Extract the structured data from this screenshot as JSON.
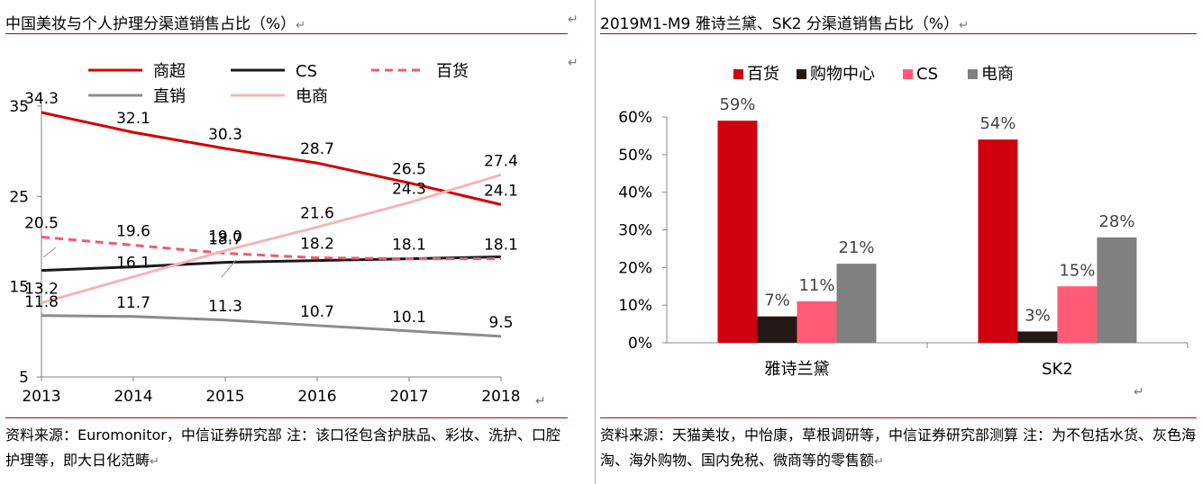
{
  "left": {
    "title": "中国美妆与个人护理分渠道销售占比（%）",
    "source": "资料来源：Euromonitor，中信证券研究部  注：该口径包含护肤品、彩妆、洗护、口腔护理等，即大日化范畴"
  },
  "right": {
    "title": "2019M1-M9 雅诗兰黛、SK2 分渠道销售占比（%）",
    "source": "资料来源：天猫美妆，中怡康，草根调研等，中信证券研究部测算  注：为不包括水货、灰色海淘、海外购物、国内免税、微商等的零售额"
  },
  "return_mark": "↵",
  "chart_data": [
    {
      "type": "line",
      "x": [
        "2013",
        "2014",
        "2015",
        "2016",
        "2017",
        "2018"
      ],
      "ylim": [
        5,
        35
      ],
      "yticks": [
        "5",
        "15",
        "25",
        "35"
      ],
      "series": [
        {
          "name": "商超",
          "values": [
            34.3,
            32.1,
            30.3,
            28.7,
            26.5,
            24.1
          ],
          "color": "#d40000",
          "dash": false
        },
        {
          "name": "CS",
          "values": [
            16.8,
            17.2,
            17.7,
            17.9,
            18.1,
            18.3
          ],
          "color": "#1a1a1a",
          "dash": false
        },
        {
          "name": "百货",
          "values": [
            20.5,
            19.6,
            18.7,
            18.2,
            18.1,
            18.1
          ],
          "color": "#f15a6a",
          "dash": true
        },
        {
          "name": "直销",
          "values": [
            11.8,
            11.7,
            11.3,
            10.7,
            10.1,
            9.5
          ],
          "color": "#8c8c8c",
          "dash": false
        },
        {
          "name": "电商",
          "values": [
            13.2,
            16.1,
            19.0,
            21.6,
            24.3,
            27.4
          ],
          "color": "#f5b5b5",
          "dash": false
        }
      ],
      "data_labels": [
        {
          "text": "34.3",
          "x": "2013",
          "y": 34.3,
          "pos": "above"
        },
        {
          "text": "32.1",
          "x": "2014",
          "y": 32.1,
          "pos": "above"
        },
        {
          "text": "30.3",
          "x": "2015",
          "y": 30.3,
          "pos": "above"
        },
        {
          "text": "28.7",
          "x": "2016",
          "y": 28.7,
          "pos": "above"
        },
        {
          "text": "26.5",
          "x": "2017",
          "y": 26.5,
          "pos": "above"
        },
        {
          "text": "27.4",
          "x": "2018",
          "y": 27.4,
          "pos": "above"
        },
        {
          "text": "24.3",
          "x": "2017",
          "y": 24.3,
          "pos": "above"
        },
        {
          "text": "24.1",
          "x": "2018",
          "y": 24.1,
          "pos": "above"
        },
        {
          "text": "20.5",
          "x": "2013",
          "y": 20.5,
          "pos": "above"
        },
        {
          "text": "19.6",
          "x": "2014",
          "y": 19.6,
          "pos": "above"
        },
        {
          "text": "19.0",
          "x": "2015",
          "y": 19.0,
          "pos": "above"
        },
        {
          "text": "21.6",
          "x": "2016",
          "y": 21.6,
          "pos": "above"
        },
        {
          "text": "18.7",
          "x": "2015",
          "y": 18.7,
          "pos": "above"
        },
        {
          "text": "18.2",
          "x": "2016",
          "y": 18.2,
          "pos": "above"
        },
        {
          "text": "18.1",
          "x": "2017",
          "y": 18.1,
          "pos": "above"
        },
        {
          "text": "18.1",
          "x": "2018",
          "y": 18.1,
          "pos": "above"
        },
        {
          "text": "16.1",
          "x": "2014",
          "y": 16.1,
          "pos": "above"
        },
        {
          "text": "13.2",
          "x": "2013",
          "y": 13.2,
          "pos": "above"
        },
        {
          "text": "11.8",
          "x": "2013",
          "y": 11.8,
          "pos": "above"
        },
        {
          "text": "11.7",
          "x": "2014",
          "y": 11.7,
          "pos": "above"
        },
        {
          "text": "11.3",
          "x": "2015",
          "y": 11.3,
          "pos": "above"
        },
        {
          "text": "10.7",
          "x": "2016",
          "y": 10.7,
          "pos": "above"
        },
        {
          "text": "10.1",
          "x": "2017",
          "y": 10.1,
          "pos": "above"
        },
        {
          "text": "9.5",
          "x": "2018",
          "y": 9.5,
          "pos": "above"
        }
      ],
      "legend": "top",
      "grid": false
    },
    {
      "type": "bar",
      "categories": [
        "雅诗兰黛",
        "SK2"
      ],
      "ylim": [
        0,
        0.6
      ],
      "yticks": [
        "0%",
        "10%",
        "20%",
        "30%",
        "40%",
        "50%",
        "60%"
      ],
      "series": [
        {
          "name": "百货",
          "values": [
            0.59,
            0.54
          ],
          "labels": [
            "59%",
            "54%"
          ],
          "color": "#d00010"
        },
        {
          "name": "购物中心",
          "values": [
            0.07,
            0.03
          ],
          "labels": [
            "7%",
            "3%"
          ],
          "color": "#231815"
        },
        {
          "name": "CS",
          "values": [
            0.11,
            0.15
          ],
          "labels": [
            "11%",
            "15%"
          ],
          "color": "#ff5b77"
        },
        {
          "name": "电商",
          "values": [
            0.21,
            0.28
          ],
          "labels": [
            "21%",
            "28%"
          ],
          "color": "#808080"
        }
      ],
      "legend": "top",
      "grid": false
    }
  ]
}
